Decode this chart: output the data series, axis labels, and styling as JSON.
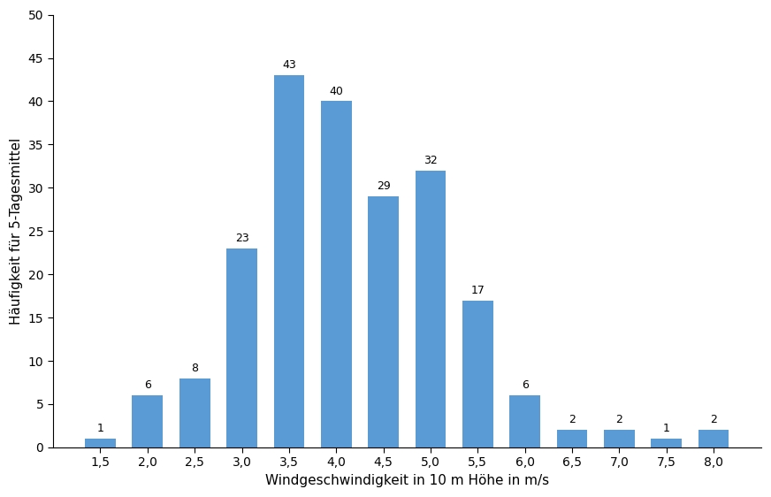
{
  "categories": [
    "1,5",
    "2,0",
    "2,5",
    "3,0",
    "3,5",
    "4,0",
    "4,5",
    "5,0",
    "5,5",
    "6,0",
    "6,5",
    "7,0",
    "7,5",
    "8,0"
  ],
  "values": [
    1,
    6,
    8,
    23,
    43,
    40,
    29,
    32,
    17,
    6,
    2,
    2,
    1,
    2
  ],
  "bar_color": "#5b9bd5",
  "xlabel": "Windgeschwindigkeit in 10 m Höhe in m/s",
  "ylabel": "Häufigkeit für 5-Tagesmittel",
  "ylim": [
    0,
    50
  ],
  "yticks": [
    0,
    5,
    10,
    15,
    20,
    25,
    30,
    35,
    40,
    45,
    50
  ],
  "label_fontsize": 11,
  "tick_fontsize": 10,
  "bar_label_fontsize": 9,
  "background_color": "#ffffff",
  "edge_color": "none"
}
